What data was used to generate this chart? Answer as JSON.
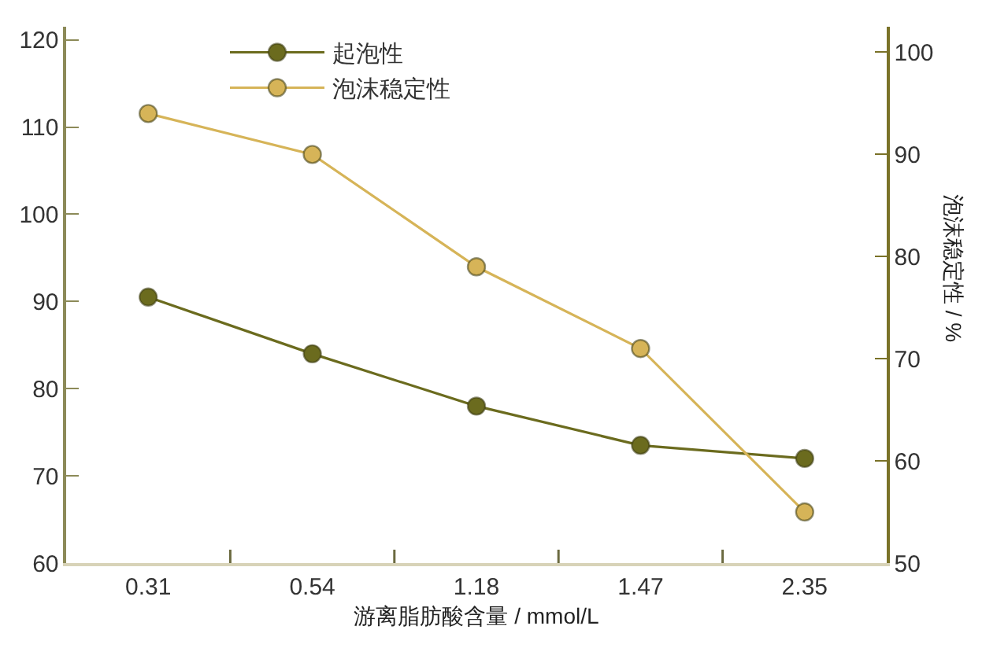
{
  "chart_data": {
    "type": "line",
    "xlabel": "游离脂肪酸含量 / mmol/L",
    "y2label": "泡沫稳定性 / %",
    "categories": [
      "0.31",
      "0.54",
      "1.18",
      "1.47",
      "2.35"
    ],
    "series": [
      {
        "name": "起泡性",
        "color": "#6b6b1e",
        "values": [
          90.5,
          84,
          78,
          73.5,
          72
        ]
      },
      {
        "name": "泡沫稳定性",
        "color": "#d6b458",
        "axis": "y2",
        "values": [
          94,
          90,
          79,
          71,
          55
        ]
      }
    ],
    "ylim": [
      60,
      121.5
    ],
    "yticks": [
      60,
      70,
      80,
      90,
      100,
      110,
      120
    ],
    "y2lim": [
      50,
      102.5
    ],
    "y2ticks": [
      50,
      60,
      70,
      80,
      90,
      100
    ],
    "legend": "top",
    "marker": "circle",
    "line_style": "solid",
    "grid": false
  }
}
